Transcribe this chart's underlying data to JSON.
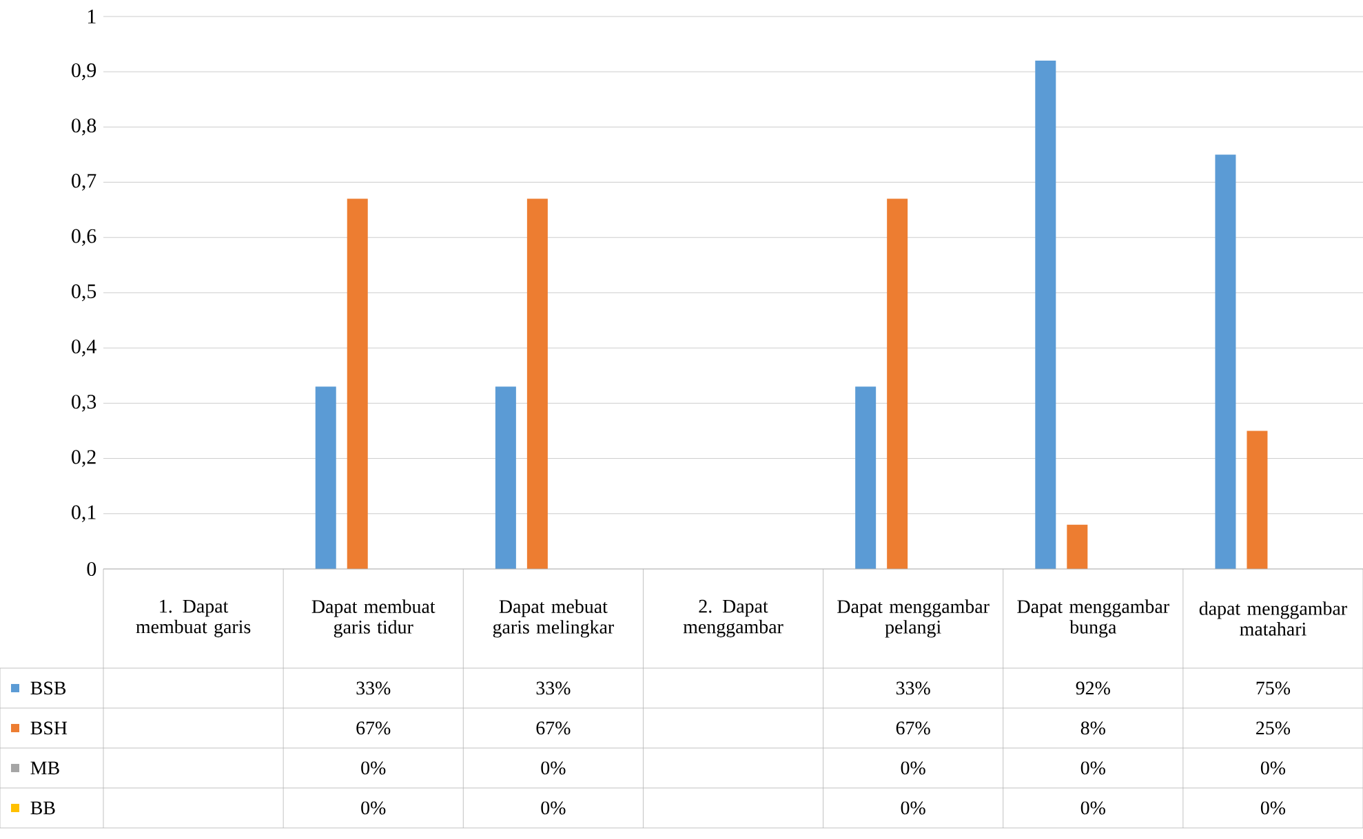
{
  "chart_data": {
    "type": "bar",
    "categories": [
      "1. Dapat membuat garis",
      "Dapat membuat garis tidur",
      "Dapat mebuat garis melingkar",
      "2. Dapat menggambar",
      "Dapat menggambar pelangi",
      "Dapat menggambar bunga",
      "dapat menggambar matahari"
    ],
    "series": [
      {
        "name": "BSB",
        "color": "#5b9bd5",
        "values": [
          null,
          0.33,
          0.33,
          null,
          0.33,
          0.92,
          0.75
        ],
        "value_labels": [
          null,
          "33%",
          "33%",
          null,
          "33%",
          "92%",
          "75%"
        ]
      },
      {
        "name": "BSH",
        "color": "#ed7d31",
        "values": [
          null,
          0.67,
          0.67,
          null,
          0.67,
          0.08,
          0.25
        ],
        "value_labels": [
          null,
          "67%",
          "67%",
          null,
          "67%",
          "8%",
          "25%"
        ]
      },
      {
        "name": "MB",
        "color": "#a5a5a5",
        "values": [
          null,
          0,
          0,
          null,
          0,
          0,
          0
        ],
        "value_labels": [
          null,
          "0%",
          "0%",
          null,
          "0%",
          "0%",
          "0%"
        ]
      },
      {
        "name": "BB",
        "color": "#ffc000",
        "values": [
          null,
          0,
          0,
          null,
          0,
          0,
          0
        ],
        "value_labels": [
          null,
          "0%",
          "0%",
          null,
          "0%",
          "0%",
          "0%"
        ]
      }
    ],
    "ylim": [
      0,
      1
    ],
    "yticks": [
      0,
      {
        "value": 0.1,
        "label": "0,1"
      },
      {
        "value": 0.2,
        "label": "0,2"
      },
      {
        "value": 0.3,
        "label": "0,3"
      },
      {
        "value": 0.4,
        "label": "0,4"
      },
      {
        "value": 0.5,
        "label": "0,5"
      },
      {
        "value": 0.6,
        "label": "0,6"
      },
      {
        "value": 0.7,
        "label": "0,7"
      },
      {
        "value": 0.8,
        "label": "0,8"
      },
      {
        "value": 0.9,
        "label": "0,9"
      },
      1
    ],
    "grid": true,
    "legend": "bottom left"
  }
}
